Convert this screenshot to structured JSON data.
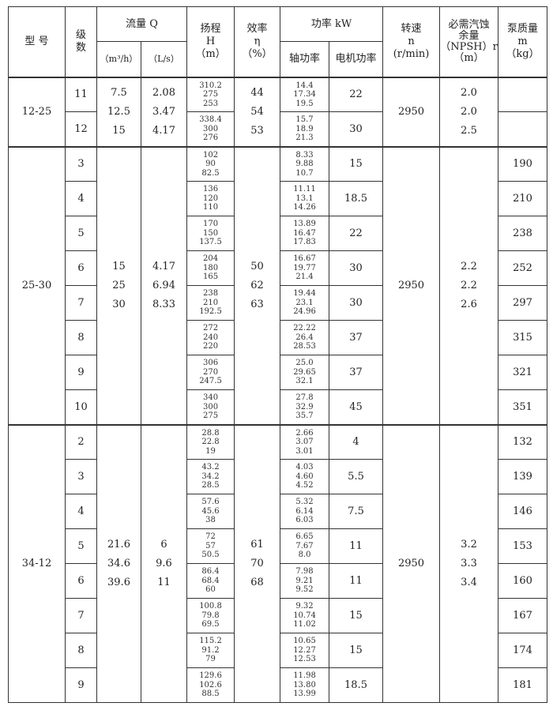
{
  "header": {
    "model": "型 号",
    "stages": "级\n数",
    "flow": "流量 Q",
    "flow_m3h": "（m³/h）",
    "flow_ls": "（L/s）",
    "head": "扬程\nH\n（m）",
    "eff": "效率\nη\n（%）",
    "power": "功率 kW",
    "shaft": "轴功率",
    "motor": "电机功率",
    "speed": "转速\nn\n(r/min)",
    "npsh": "必需汽蚀\n余量\n（NPSH）r\n（m）",
    "mass": "泵质量\nm\n（kg）"
  },
  "groups": [
    {
      "model": "12-25",
      "q_m3h": [
        "7.5",
        "12.5",
        "15"
      ],
      "q_ls": [
        "2.08",
        "3.47",
        "4.17"
      ],
      "eff": [
        "44",
        "54",
        "53"
      ],
      "speed": "2950",
      "npsh": [
        "2.0",
        "2.0",
        "2.5"
      ],
      "rows": [
        {
          "stage": "11",
          "head": [
            "310.2",
            "275",
            "253"
          ],
          "shaft": [
            "14.4",
            "17.34",
            "19.5"
          ],
          "motor": "22",
          "mass": ""
        },
        {
          "stage": "12",
          "head": [
            "338.4",
            "300",
            "276"
          ],
          "shaft": [
            "15.7",
            "18.9",
            "21.3"
          ],
          "motor": "30",
          "mass": ""
        }
      ]
    },
    {
      "model": "25-30",
      "q_m3h": [
        "15",
        "25",
        "30"
      ],
      "q_ls": [
        "4.17",
        "6.94",
        "8.33"
      ],
      "eff": [
        "50",
        "62",
        "63"
      ],
      "speed": "2950",
      "npsh": [
        "2.2",
        "2.2",
        "2.6"
      ],
      "rows": [
        {
          "stage": "3",
          "head": [
            "102",
            "90",
            "82.5"
          ],
          "shaft": [
            "8.33",
            "9.88",
            "10.7"
          ],
          "motor": "15",
          "mass": "190"
        },
        {
          "stage": "4",
          "head": [
            "136",
            "120",
            "110"
          ],
          "shaft": [
            "11.11",
            "13.1",
            "14.26"
          ],
          "motor": "18.5",
          "mass": "210"
        },
        {
          "stage": "5",
          "head": [
            "170",
            "150",
            "137.5"
          ],
          "shaft": [
            "13.89",
            "16.47",
            "17.83"
          ],
          "motor": "22",
          "mass": "238"
        },
        {
          "stage": "6",
          "head": [
            "204",
            "180",
            "165"
          ],
          "shaft": [
            "16.67",
            "19.77",
            "21.4"
          ],
          "motor": "30",
          "mass": "252"
        },
        {
          "stage": "7",
          "head": [
            "238",
            "210",
            "192.5"
          ],
          "shaft": [
            "19.44",
            "23.1",
            "24.96"
          ],
          "motor": "30",
          "mass": "297"
        },
        {
          "stage": "8",
          "head": [
            "272",
            "240",
            "220"
          ],
          "shaft": [
            "22.22",
            "26.4",
            "28.53"
          ],
          "motor": "37",
          "mass": "315"
        },
        {
          "stage": "9",
          "head": [
            "306",
            "270",
            "247.5"
          ],
          "shaft": [
            "25.0",
            "29.65",
            "32.1"
          ],
          "motor": "37",
          "mass": "321"
        },
        {
          "stage": "10",
          "head": [
            "340",
            "300",
            "275"
          ],
          "shaft": [
            "27.8",
            "32.9",
            "35.7"
          ],
          "motor": "45",
          "mass": "351"
        }
      ]
    },
    {
      "model": "34-12",
      "q_m3h": [
        "21.6",
        "34.6",
        "39.6"
      ],
      "q_ls": [
        "6",
        "9.6",
        "11"
      ],
      "eff": [
        "61",
        "70",
        "68"
      ],
      "speed": "2950",
      "npsh": [
        "3.2",
        "3.3",
        "3.4"
      ],
      "rows": [
        {
          "stage": "2",
          "head": [
            "28.8",
            "22.8",
            "19"
          ],
          "shaft": [
            "2.66",
            "3.07",
            "3.01"
          ],
          "motor": "4",
          "mass": "132"
        },
        {
          "stage": "3",
          "head": [
            "43.2",
            "34.2",
            "28.5"
          ],
          "shaft": [
            "4.03",
            "4.60",
            "4.52"
          ],
          "motor": "5.5",
          "mass": "139"
        },
        {
          "stage": "4",
          "head": [
            "57.6",
            "45.6",
            "38"
          ],
          "shaft": [
            "5.32",
            "6.14",
            "6.03"
          ],
          "motor": "7.5",
          "mass": "146"
        },
        {
          "stage": "5",
          "head": [
            "72",
            "57",
            "50.5"
          ],
          "shaft": [
            "6.65",
            "7.67",
            "8.0"
          ],
          "motor": "11",
          "mass": "153"
        },
        {
          "stage": "6",
          "head": [
            "86.4",
            "68.4",
            "60"
          ],
          "shaft": [
            "7.98",
            "9.21",
            "9.52"
          ],
          "motor": "11",
          "mass": "160"
        },
        {
          "stage": "7",
          "head": [
            "100.8",
            "79.8",
            "69.5"
          ],
          "shaft": [
            "9.32",
            "10.74",
            "11.02"
          ],
          "motor": "15",
          "mass": "167"
        },
        {
          "stage": "8",
          "head": [
            "115.2",
            "91.2",
            "79"
          ],
          "shaft": [
            "10.65",
            "12.27",
            "12.53"
          ],
          "motor": "15",
          "mass": "174"
        },
        {
          "stage": "9",
          "head": [
            "129.6",
            "102.6",
            "88.5"
          ],
          "shaft": [
            "11.98",
            "13.80",
            "13.99"
          ],
          "motor": "18.5",
          "mass": "181"
        }
      ]
    }
  ]
}
